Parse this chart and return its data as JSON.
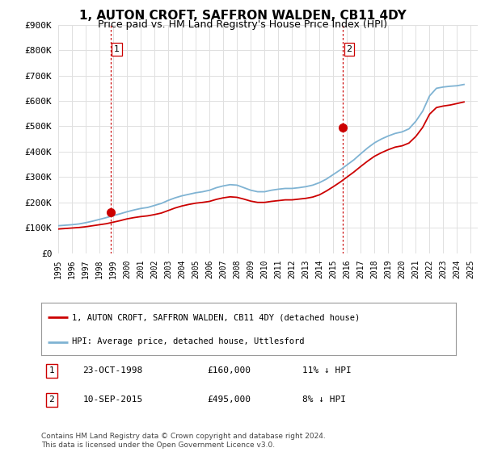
{
  "title": "1, AUTON CROFT, SAFFRON WALDEN, CB11 4DY",
  "subtitle": "Price paid vs. HM Land Registry's House Price Index (HPI)",
  "legend_line1": "1, AUTON CROFT, SAFFRON WALDEN, CB11 4DY (detached house)",
  "legend_line2": "HPI: Average price, detached house, Uttlesford",
  "annotation1_date": "23-OCT-1998",
  "annotation1_price": "£160,000",
  "annotation1_hpi": "11% ↓ HPI",
  "annotation1_year": 1998.8,
  "annotation1_value": 160000,
  "annotation2_date": "10-SEP-2015",
  "annotation2_price": "£495,000",
  "annotation2_hpi": "8% ↓ HPI",
  "annotation2_year": 2015.7,
  "annotation2_value": 495000,
  "xmin": 1995,
  "xmax": 2025.5,
  "ymin": 0,
  "ymax": 900000,
  "yticks": [
    0,
    100000,
    200000,
    300000,
    400000,
    500000,
    600000,
    700000,
    800000,
    900000
  ],
  "ytick_labels": [
    "£0",
    "£100K",
    "£200K",
    "£300K",
    "£400K",
    "£500K",
    "£600K",
    "£700K",
    "£800K",
    "£900K"
  ],
  "xtick_years": [
    1995,
    1996,
    1997,
    1998,
    1999,
    2000,
    2001,
    2002,
    2003,
    2004,
    2005,
    2006,
    2007,
    2008,
    2009,
    2010,
    2011,
    2012,
    2013,
    2014,
    2015,
    2016,
    2017,
    2018,
    2019,
    2020,
    2021,
    2022,
    2023,
    2024,
    2025
  ],
  "background_color": "#ffffff",
  "plot_bg_color": "#ffffff",
  "grid_color": "#e0e0e0",
  "hpi_color": "#7fb3d3",
  "price_color": "#cc0000",
  "vline_color": "#cc0000",
  "marker_color": "#cc0000",
  "title_fontsize": 11,
  "subtitle_fontsize": 9,
  "footnote": "Contains HM Land Registry data © Crown copyright and database right 2024.\nThis data is licensed under the Open Government Licence v3.0.",
  "hpi_years": [
    1995.0,
    1995.5,
    1996.0,
    1996.5,
    1997.0,
    1997.5,
    1998.0,
    1998.5,
    1999.0,
    1999.5,
    2000.0,
    2000.5,
    2001.0,
    2001.5,
    2002.0,
    2002.5,
    2003.0,
    2003.5,
    2004.0,
    2004.5,
    2005.0,
    2005.5,
    2006.0,
    2006.5,
    2007.0,
    2007.5,
    2008.0,
    2008.5,
    2009.0,
    2009.5,
    2010.0,
    2010.5,
    2011.0,
    2011.5,
    2012.0,
    2012.5,
    2013.0,
    2013.5,
    2014.0,
    2014.5,
    2015.0,
    2015.5,
    2016.0,
    2016.5,
    2017.0,
    2017.5,
    2018.0,
    2018.5,
    2019.0,
    2019.5,
    2020.0,
    2020.5,
    2021.0,
    2021.5,
    2022.0,
    2022.5,
    2023.0,
    2023.5,
    2024.0,
    2024.5
  ],
  "hpi_values": [
    108000,
    110000,
    112000,
    115000,
    120000,
    126000,
    133000,
    140000,
    148000,
    155000,
    163000,
    170000,
    176000,
    180000,
    188000,
    196000,
    208000,
    218000,
    226000,
    232000,
    238000,
    242000,
    248000,
    258000,
    265000,
    270000,
    268000,
    258000,
    248000,
    242000,
    242000,
    248000,
    252000,
    255000,
    255000,
    258000,
    262000,
    268000,
    278000,
    292000,
    310000,
    328000,
    348000,
    368000,
    392000,
    415000,
    435000,
    450000,
    462000,
    472000,
    478000,
    490000,
    520000,
    560000,
    620000,
    650000,
    655000,
    658000,
    660000,
    665000
  ],
  "price_years": [
    1995.0,
    1995.5,
    1996.0,
    1996.5,
    1997.0,
    1997.5,
    1998.0,
    1998.5,
    1999.0,
    1999.5,
    2000.0,
    2000.5,
    2001.0,
    2001.5,
    2002.0,
    2002.5,
    2003.0,
    2003.5,
    2004.0,
    2004.5,
    2005.0,
    2005.5,
    2006.0,
    2006.5,
    2007.0,
    2007.5,
    2008.0,
    2008.5,
    2009.0,
    2009.5,
    2010.0,
    2010.5,
    2011.0,
    2011.5,
    2012.0,
    2012.5,
    2013.0,
    2013.5,
    2014.0,
    2014.5,
    2015.0,
    2015.5,
    2016.0,
    2016.5,
    2017.0,
    2017.5,
    2018.0,
    2018.5,
    2019.0,
    2019.5,
    2020.0,
    2020.5,
    2021.0,
    2021.5,
    2022.0,
    2022.5,
    2023.0,
    2023.5,
    2024.0,
    2024.5
  ],
  "price_values": [
    95000,
    97000,
    99000,
    101000,
    104000,
    108000,
    112000,
    116000,
    122000,
    128000,
    135000,
    140000,
    144000,
    147000,
    152000,
    158000,
    168000,
    178000,
    186000,
    192000,
    197000,
    200000,
    204000,
    212000,
    218000,
    222000,
    220000,
    213000,
    205000,
    200000,
    200000,
    204000,
    207000,
    210000,
    210000,
    213000,
    216000,
    221000,
    230000,
    245000,
    262000,
    280000,
    300000,
    320000,
    342000,
    363000,
    382000,
    396000,
    408000,
    418000,
    423000,
    434000,
    460000,
    496000,
    548000,
    574000,
    580000,
    584000,
    590000,
    596000
  ]
}
